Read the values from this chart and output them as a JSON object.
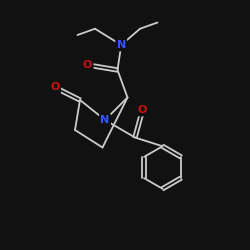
{
  "bg_color": "#111111",
  "bond_color": "#cccccc",
  "N_color": "#3355ff",
  "O_color": "#cc1111",
  "font_size": 8.0,
  "bond_width": 1.3,
  "dbo": 0.07,
  "xlim": [
    0,
    10
  ],
  "ylim": [
    0,
    10
  ]
}
